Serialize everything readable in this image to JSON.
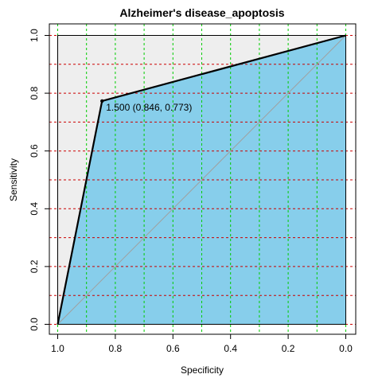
{
  "chart_data": {
    "type": "line",
    "title": "Alzheimer's disease_apoptosis",
    "xlabel": "Specificity",
    "ylabel": "Sensitivity",
    "xlim": [
      1.0,
      0.0
    ],
    "ylim": [
      0.0,
      1.0
    ],
    "x_reversed": true,
    "grid": true,
    "x_ticks": [
      "1.0",
      "0.8",
      "0.6",
      "0.4",
      "0.2",
      "0.0"
    ],
    "y_ticks": [
      "0.0",
      "0.2",
      "0.4",
      "0.6",
      "0.8",
      "1.0"
    ],
    "series": [
      {
        "x": [
          1.0,
          0.846,
          0.0
        ],
        "y": [
          0.0,
          0.773,
          1.0
        ]
      }
    ],
    "reference_line": {
      "x": [
        1.0,
        0.0
      ],
      "y": [
        0.0,
        1.0
      ]
    },
    "best_threshold": {
      "specificity": 0.846,
      "sensitivity": 0.773,
      "label": "1.500 (0.846, 0.773)"
    },
    "colors": {
      "auc_fill": "#87CEEB",
      "upper_fill": "#EEEEEE",
      "curve": "#000000",
      "diagonal": "#A0A0A0",
      "grid_v": "#00CC00",
      "grid_h": "#CC0000"
    }
  }
}
